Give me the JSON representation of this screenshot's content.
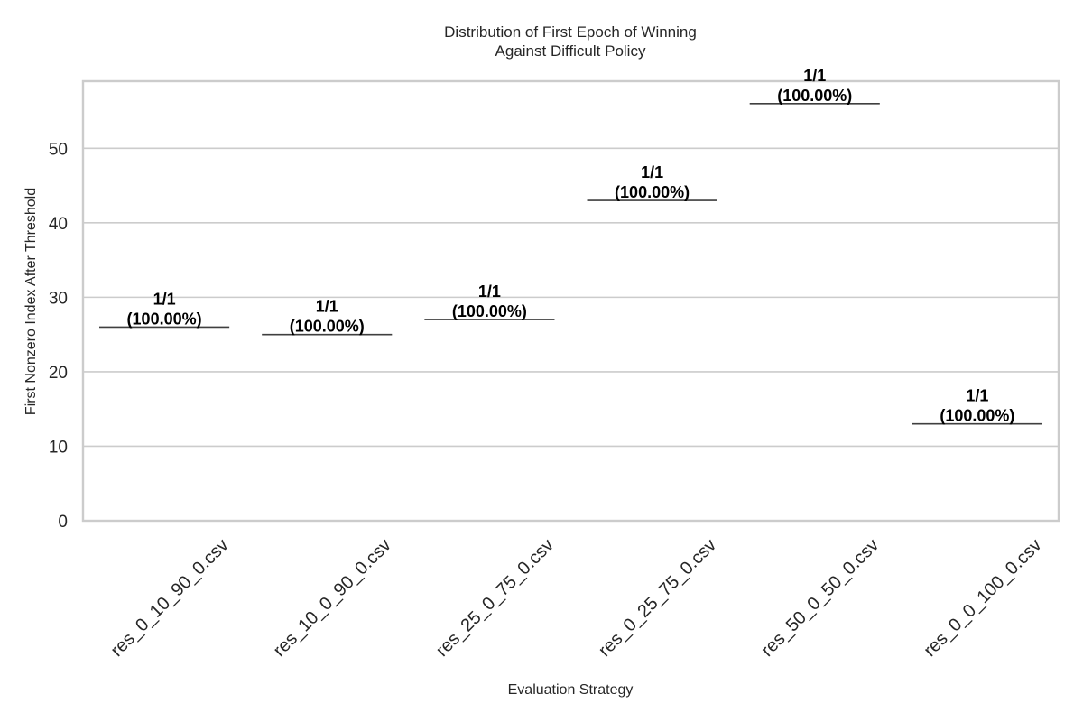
{
  "chart_data": {
    "type": "box",
    "title": "Distribution of First Epoch of Winning\nAgainst Difficult Policy",
    "xlabel": "Evaluation Strategy",
    "ylabel": "First Nonzero Index After Threshold",
    "ylim": [
      0,
      59
    ],
    "yticks": [
      0,
      10,
      20,
      30,
      40,
      50
    ],
    "grid": true,
    "categories": [
      "res_0_10_90_0.csv",
      "res_10_0_90_0.csv",
      "res_25_0_75_0.csv",
      "res_0_25_75_0.csv",
      "res_50_0_50_0.csv",
      "res_0_0_100_0.csv"
    ],
    "values": [
      26,
      25,
      27,
      43,
      56,
      13
    ],
    "annotations": [
      {
        "count": "1/1",
        "percent": "(100.00%)"
      },
      {
        "count": "1/1",
        "percent": "(100.00%)"
      },
      {
        "count": "1/1",
        "percent": "(100.00%)"
      },
      {
        "count": "1/1",
        "percent": "(100.00%)"
      },
      {
        "count": "1/1",
        "percent": "(100.00%)"
      },
      {
        "count": "1/1",
        "percent": "(100.00%)"
      }
    ],
    "colors": {
      "grid": "#cccccc",
      "line": "#3f3f3f",
      "text": "#262626",
      "annotation": "#000000"
    }
  }
}
